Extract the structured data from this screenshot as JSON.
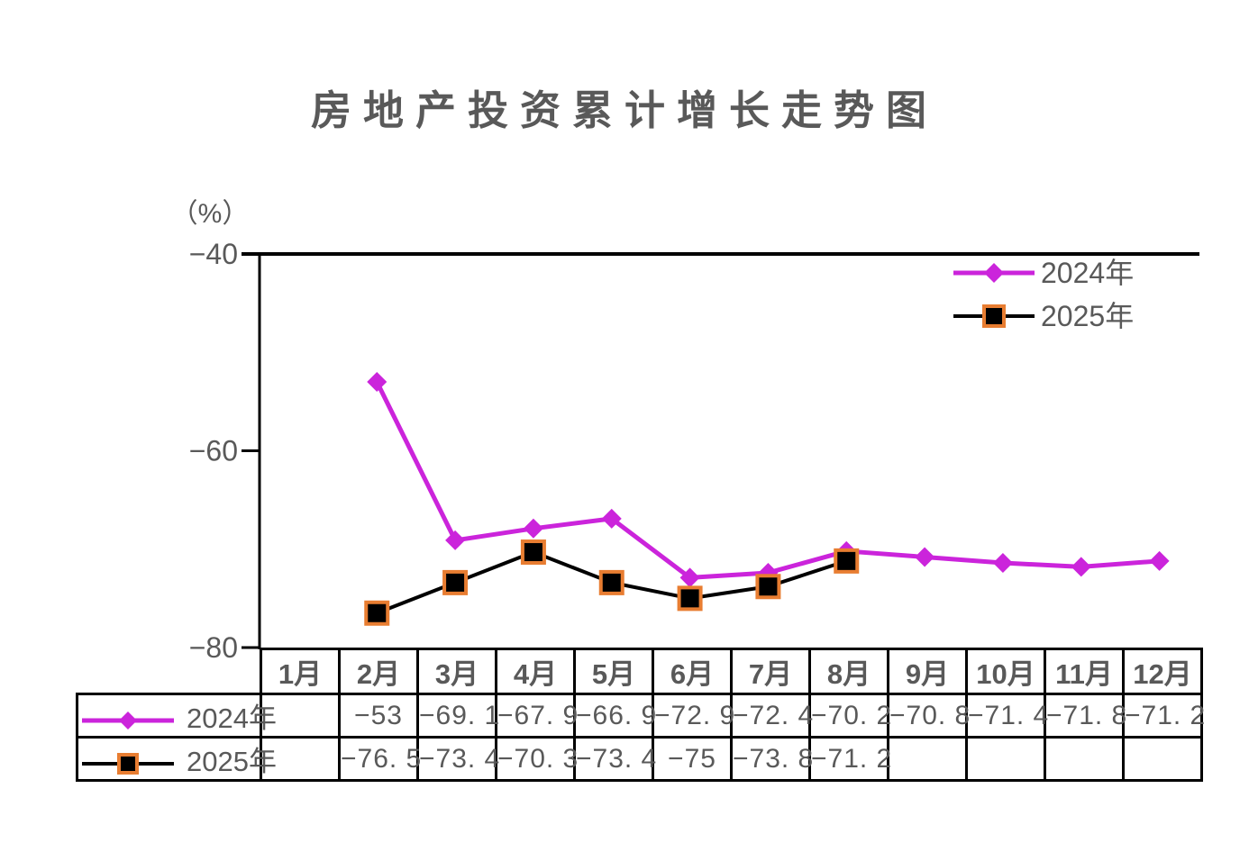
{
  "chart_data": {
    "type": "line",
    "title": "房地产投资累计增长走势图",
    "ylabel": "（%）",
    "xlabel": "",
    "ylim": [
      -80,
      -40
    ],
    "grid": false,
    "legend_position": "top-right",
    "y_ticks": [
      {
        "value": -40,
        "label": "−40"
      },
      {
        "value": -60,
        "label": "−60"
      },
      {
        "value": -80,
        "label": "−80"
      }
    ],
    "categories": [
      "1月",
      "2月",
      "3月",
      "4月",
      "5月",
      "6月",
      "7月",
      "8月",
      "9月",
      "10月",
      "11月",
      "12月"
    ],
    "series": [
      {
        "name": "2024年",
        "color": "#CB24DB",
        "marker": "diamond",
        "marker_fill": "#CB24DB",
        "values": [
          null,
          -53,
          -69.1,
          -67.9,
          -66.9,
          -72.9,
          -72.4,
          -70.2,
          -70.8,
          -71.4,
          -71.8,
          -71.2
        ],
        "display": [
          "",
          "−53",
          "−69. 1",
          "−67. 9",
          "−66. 9",
          "−72. 9",
          "−72. 4",
          "−70. 2",
          "−70. 8",
          "−71. 4",
          "−71. 8",
          "−71. 2"
        ]
      },
      {
        "name": "2025年",
        "color": "#000000",
        "marker": "square",
        "marker_fill": "#000000",
        "marker_border": "#E87D31",
        "values": [
          null,
          -76.5,
          -73.4,
          -70.3,
          -73.4,
          -75,
          -73.8,
          -71.2,
          null,
          null,
          null,
          null
        ],
        "display": [
          "",
          "−76. 5",
          "−73. 4",
          "−70. 3",
          "−73. 4",
          "−75",
          "−73. 8",
          "−71. 2",
          "",
          "",
          "",
          ""
        ]
      }
    ],
    "colors": {
      "text": "#595959",
      "axis": "#000000",
      "series_2024": "#CB24DB",
      "series_2025": "#000000",
      "marker_border_2025": "#E87D31"
    }
  }
}
